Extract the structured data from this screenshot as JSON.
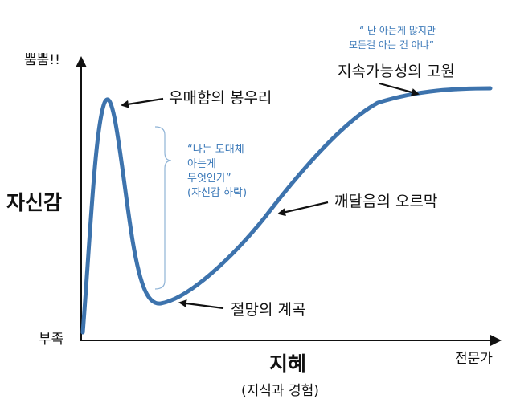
{
  "axes": {
    "y_title": "자신감",
    "y_top": "뿜뿜!!",
    "y_bottom": "부족",
    "x_title": "지혜",
    "x_subtitle": "(지식과 경험)",
    "x_end": "전문가"
  },
  "annotations": {
    "peak": "우매함의 봉우리",
    "valley": "절망의 계곡",
    "slope": "깨달음의 오르막",
    "plateau": "지속가능성의 고원"
  },
  "quotes": {
    "valley_quote": [
      "“나는 도대체",
      "아는게",
      "무엇인가”",
      "(자신감 하락)"
    ],
    "plateau_quote": [
      "“ 난 아는게 많지만",
      "모든걸 아는 건 아냐”"
    ]
  },
  "colors": {
    "curve": "#3d73ad",
    "bracket": "#8fb3d6",
    "quote_text": "#3a78b8",
    "axis": "#111111"
  }
}
